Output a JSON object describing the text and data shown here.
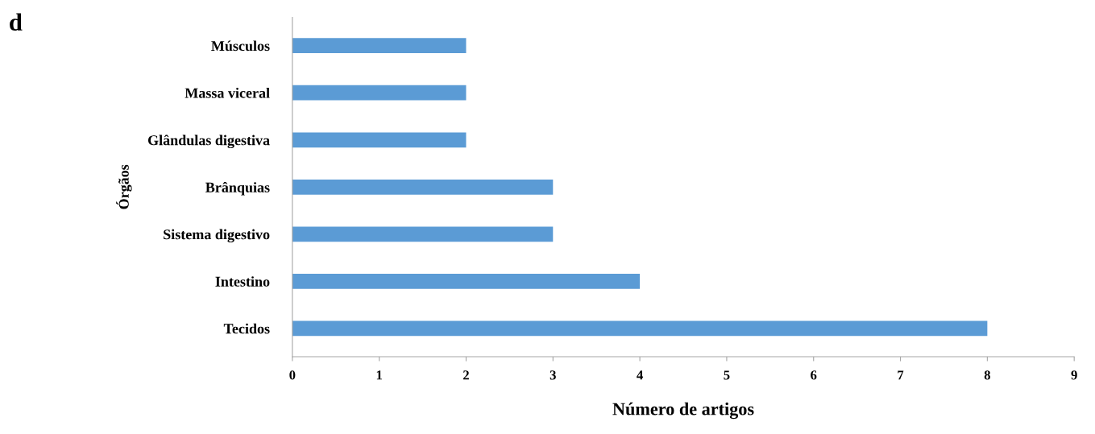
{
  "chart_data": {
    "type": "bar",
    "orientation": "horizontal",
    "title": "d",
    "xlabel": "Número de artigos",
    "ylabel": "Órgãos",
    "categories": [
      "Músculos",
      "Massa viceral",
      "Glândulas digestiva",
      "Brânquias",
      "Sistema digestivo",
      "Intestino",
      "Tecidos"
    ],
    "values": [
      2,
      2,
      2,
      3,
      3,
      4,
      8
    ],
    "color": "#5b9bd5",
    "xlim": [
      0,
      9
    ],
    "xticks": [
      0,
      1,
      2,
      3,
      4,
      5,
      6,
      7,
      8,
      9
    ],
    "grid": false,
    "legend": false
  }
}
